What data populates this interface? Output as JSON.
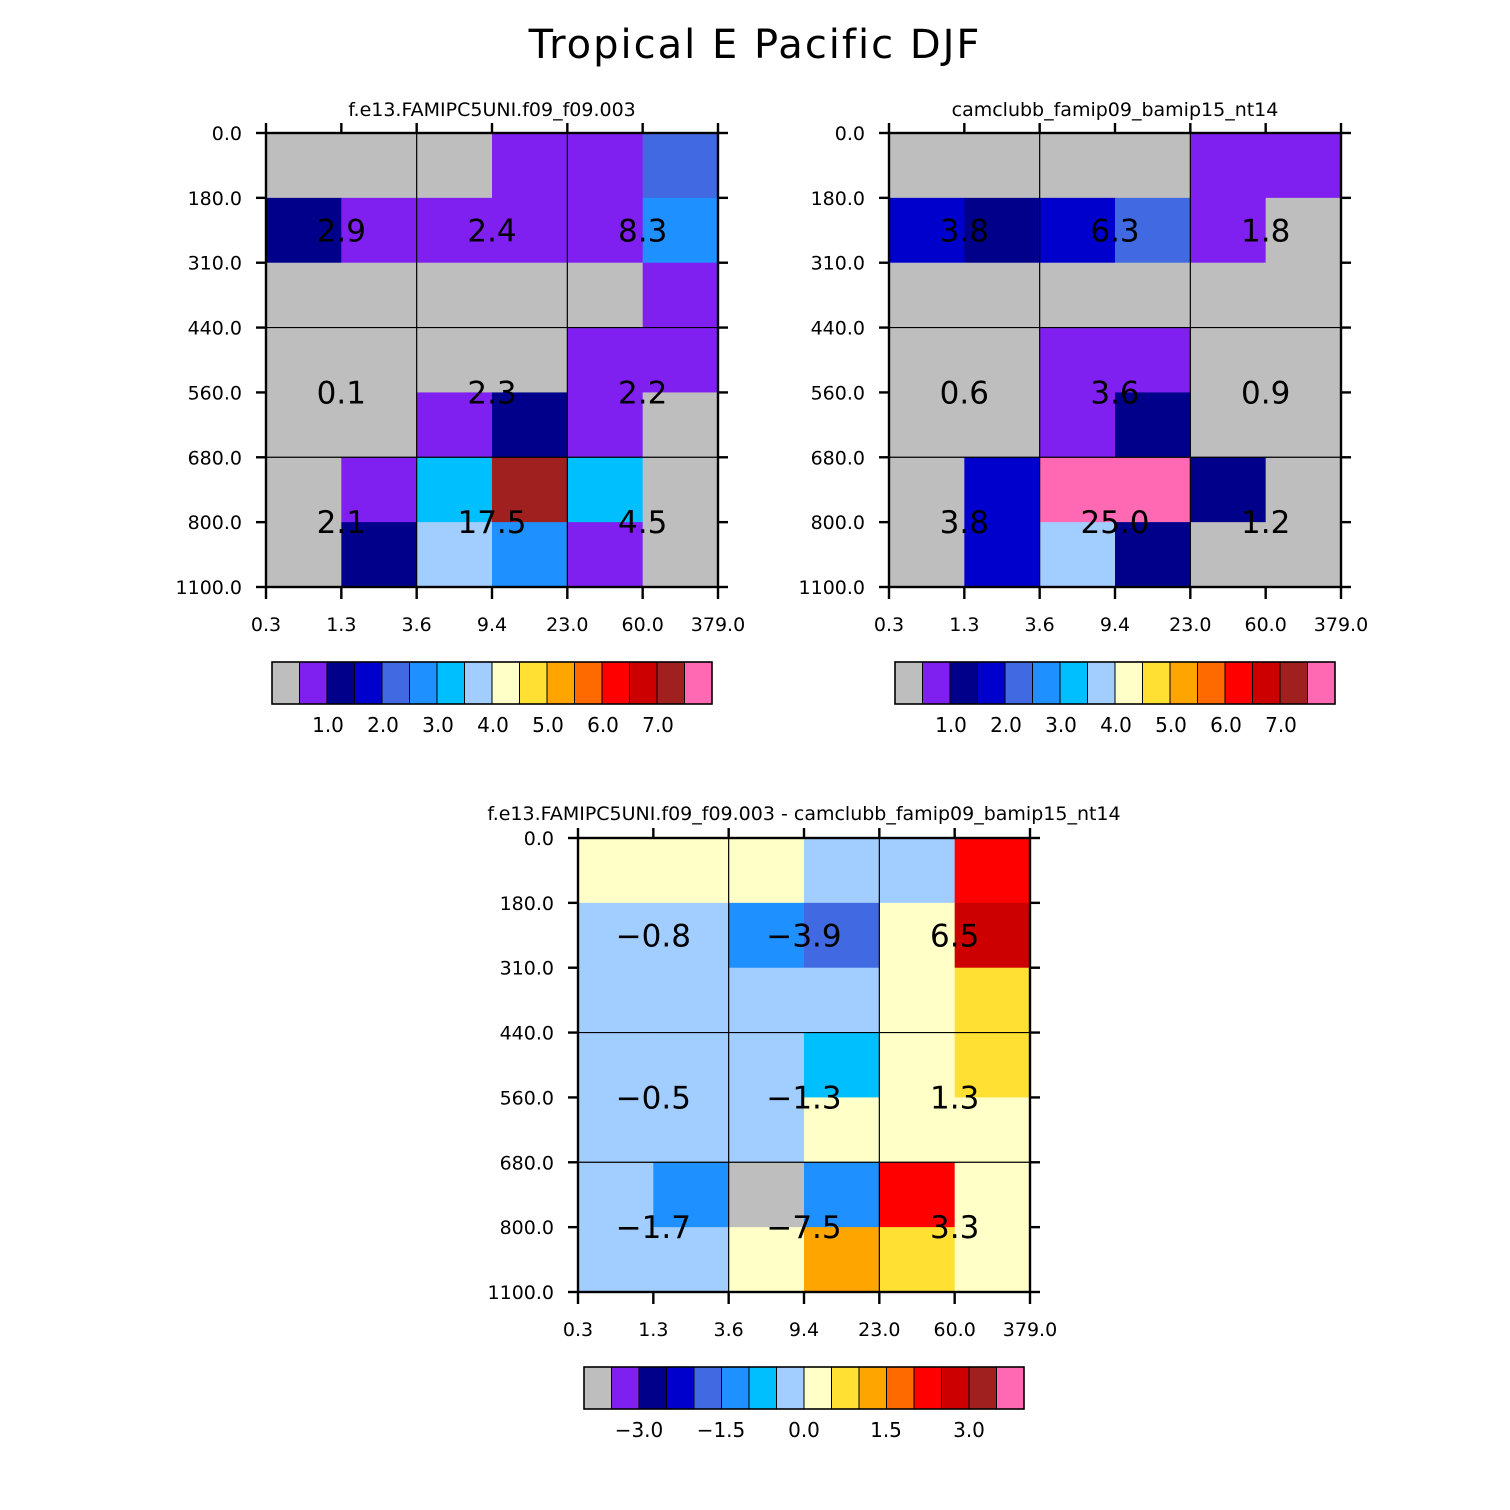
{
  "title": "Tropical E Pacific DJF",
  "chart_data": [
    {
      "type": "heatmap",
      "title": "f.e13.FAMIPC5UNI.f09_f09.003",
      "x_ticks": [
        "0.3",
        "1.3",
        "3.6",
        "9.4",
        "23.0",
        "60.0",
        "379.0"
      ],
      "y_ticks": [
        "0.0",
        "180.0",
        "310.0",
        "440.0",
        "560.0",
        "680.0",
        "800.0",
        "1100.0"
      ],
      "cells": [
        [
          "gray",
          "gray",
          "gray",
          "purple",
          "purple",
          "royalblue"
        ],
        [
          "navy",
          "purple",
          "purple",
          "purple",
          "purple",
          "dodgerblue"
        ],
        [
          "gray",
          "gray",
          "gray",
          "gray",
          "gray",
          "purple"
        ],
        [
          "gray",
          "gray",
          "gray",
          "gray",
          "purple",
          "purple"
        ],
        [
          "gray",
          "gray",
          "purple",
          "navy",
          "purple",
          "gray"
        ],
        [
          "gray",
          "purple",
          "deepskyblue",
          "brown",
          "deepskyblue",
          "gray"
        ],
        [
          "gray",
          "navy",
          "lightblue",
          "dodgerblue",
          "purple",
          "gray"
        ]
      ],
      "labels": [
        [
          "2.9",
          "2.4",
          "8.3"
        ],
        [
          "0.1",
          "2.3",
          "2.2"
        ],
        [
          "2.1",
          "17.5",
          "4.5"
        ]
      ],
      "colorbar": {
        "colors": [
          "gray",
          "purple",
          "navy",
          "blue",
          "royalblue",
          "dodgerblue",
          "deepskyblue",
          "lightblue",
          "lightyellow",
          "gold",
          "orange",
          "darkorange",
          "red",
          "darkred",
          "brown",
          "hotpink"
        ],
        "labels": [
          "1.0",
          "2.0",
          "3.0",
          "4.0",
          "5.0",
          "6.0",
          "7.0"
        ]
      }
    },
    {
      "type": "heatmap",
      "title": "camclubb_famip09_bamip15_nt14",
      "x_ticks": [
        "0.3",
        "1.3",
        "3.6",
        "9.4",
        "23.0",
        "60.0",
        "379.0"
      ],
      "y_ticks": [
        "0.0",
        "180.0",
        "310.0",
        "440.0",
        "560.0",
        "680.0",
        "800.0",
        "1100.0"
      ],
      "cells": [
        [
          "gray",
          "gray",
          "gray",
          "gray",
          "purple",
          "purple"
        ],
        [
          "blue",
          "navy",
          "blue",
          "royalblue",
          "purple",
          "gray"
        ],
        [
          "gray",
          "gray",
          "gray",
          "gray",
          "gray",
          "gray"
        ],
        [
          "gray",
          "gray",
          "purple",
          "purple",
          "gray",
          "gray"
        ],
        [
          "gray",
          "gray",
          "purple",
          "navy",
          "gray",
          "gray"
        ],
        [
          "gray",
          "blue",
          "hotpink",
          "hotpink",
          "navy",
          "gray"
        ],
        [
          "gray",
          "blue",
          "lightblue",
          "navy",
          "gray",
          "gray"
        ]
      ],
      "labels": [
        [
          "3.8",
          "6.3",
          "1.8"
        ],
        [
          "0.6",
          "3.6",
          "0.9"
        ],
        [
          "3.8",
          "25.0",
          "1.2"
        ]
      ],
      "colorbar": {
        "colors": [
          "gray",
          "purple",
          "navy",
          "blue",
          "royalblue",
          "dodgerblue",
          "deepskyblue",
          "lightblue",
          "lightyellow",
          "gold",
          "orange",
          "darkorange",
          "red",
          "darkred",
          "brown",
          "hotpink"
        ],
        "labels": [
          "1.0",
          "2.0",
          "3.0",
          "4.0",
          "5.0",
          "6.0",
          "7.0"
        ]
      }
    },
    {
      "type": "heatmap",
      "title": "f.e13.FAMIPC5UNI.f09_f09.003 - camclubb_famip09_bamip15_nt14",
      "x_ticks": [
        "0.3",
        "1.3",
        "3.6",
        "9.4",
        "23.0",
        "60.0",
        "379.0"
      ],
      "y_ticks": [
        "0.0",
        "180.0",
        "310.0",
        "440.0",
        "560.0",
        "680.0",
        "800.0",
        "1100.0"
      ],
      "cells": [
        [
          "lightyellow",
          "lightyellow",
          "lightyellow",
          "lightblue",
          "lightblue",
          "red"
        ],
        [
          "lightblue",
          "lightblue",
          "dodgerblue",
          "royalblue",
          "lightyellow",
          "darkred"
        ],
        [
          "lightblue",
          "lightblue",
          "lightblue",
          "lightblue",
          "lightyellow",
          "gold"
        ],
        [
          "lightblue",
          "lightblue",
          "lightblue",
          "deepskyblue",
          "lightyellow",
          "gold"
        ],
        [
          "lightblue",
          "lightblue",
          "lightblue",
          "lightyellow",
          "lightyellow",
          "lightyellow"
        ],
        [
          "lightblue",
          "dodgerblue",
          "gray",
          "dodgerblue",
          "red",
          "lightyellow"
        ],
        [
          "lightblue",
          "lightblue",
          "lightyellow",
          "orange",
          "gold",
          "lightyellow"
        ]
      ],
      "labels": [
        [
          "-0.8",
          "-3.9",
          "6.5"
        ],
        [
          "-0.5",
          "-1.3",
          "1.3"
        ],
        [
          "-1.7",
          "-7.5",
          "3.3"
        ]
      ],
      "colorbar": {
        "colors": [
          "gray",
          "purple",
          "navy",
          "blue",
          "royalblue",
          "dodgerblue",
          "deepskyblue",
          "lightblue",
          "lightyellow",
          "gold",
          "orange",
          "darkorange",
          "red",
          "darkred",
          "brown",
          "hotpink"
        ],
        "labels": [
          "-3.0",
          "-1.5",
          "0.0",
          "1.5",
          "3.0"
        ]
      }
    }
  ],
  "palette": {
    "gray": "#bebebe",
    "purple": "#8020f0",
    "navy": "#00008b",
    "blue": "#0000cd",
    "royalblue": "#4169e1",
    "dodgerblue": "#1e90ff",
    "deepskyblue": "#00bfff",
    "lightblue": "#a2cdff",
    "lightyellow": "#ffffc8",
    "gold": "#ffe033",
    "orange": "#ffa500",
    "darkorange": "#ff6a00",
    "red": "#ff0000",
    "darkred": "#cd0000",
    "brown": "#a02020",
    "hotpink": "#ff69b4"
  }
}
